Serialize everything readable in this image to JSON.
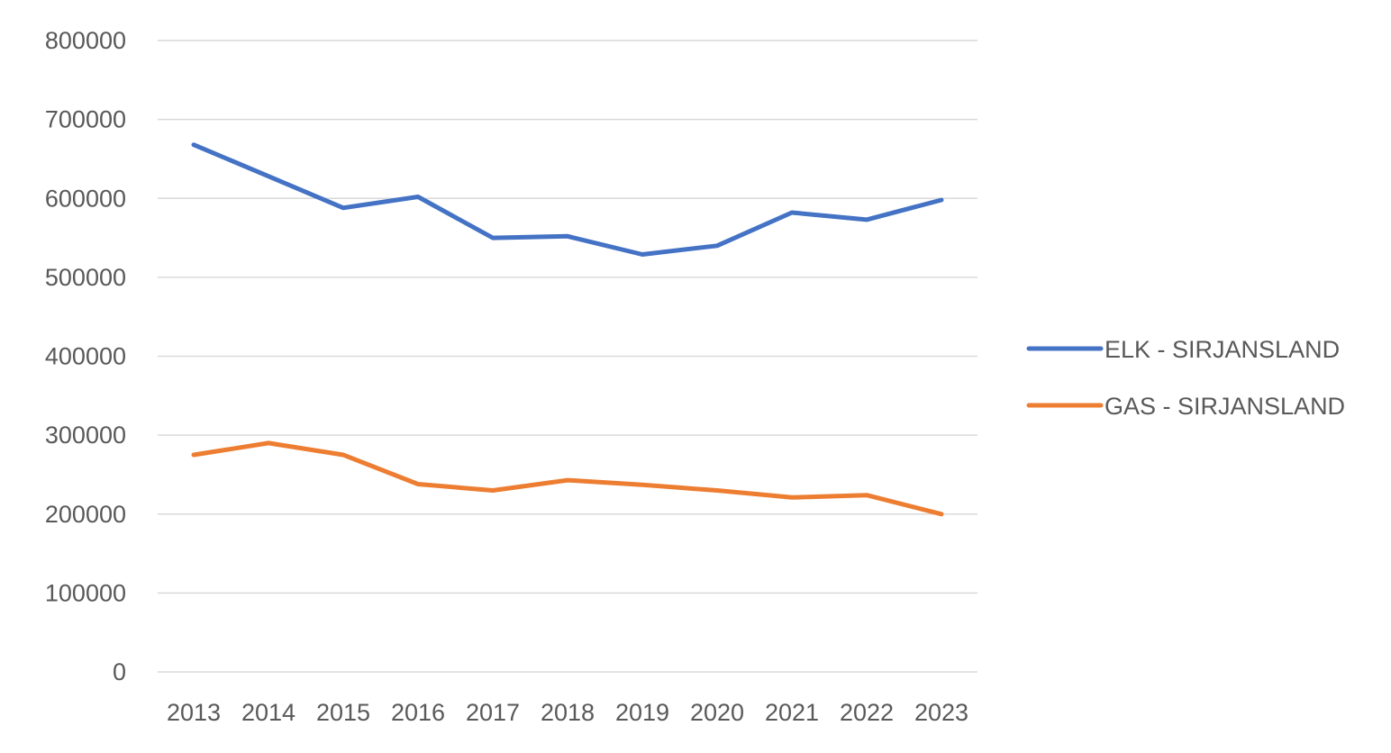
{
  "chart_data": {
    "type": "line",
    "title": "",
    "xlabel": "",
    "ylabel": "",
    "categories": [
      "2013",
      "2014",
      "2015",
      "2016",
      "2017",
      "2018",
      "2019",
      "2020",
      "2021",
      "2022",
      "2023"
    ],
    "y_ticks": [
      "0",
      "100000",
      "200000",
      "300000",
      "400000",
      "500000",
      "600000",
      "700000",
      "800000"
    ],
    "ylim": [
      0,
      800000
    ],
    "grid": true,
    "legend_position": "right",
    "series": [
      {
        "name": "ELK - SIRJANSLAND",
        "color": "#4472c4",
        "values": [
          668000,
          628000,
          588000,
          602000,
          550000,
          552000,
          529000,
          540000,
          582000,
          573000,
          598000
        ]
      },
      {
        "name": "GAS - SIRJANSLAND",
        "color": "#ed7d31",
        "values": [
          275000,
          290000,
          275000,
          238000,
          230000,
          243000,
          237000,
          230000,
          221000,
          224000,
          200000
        ]
      }
    ]
  }
}
